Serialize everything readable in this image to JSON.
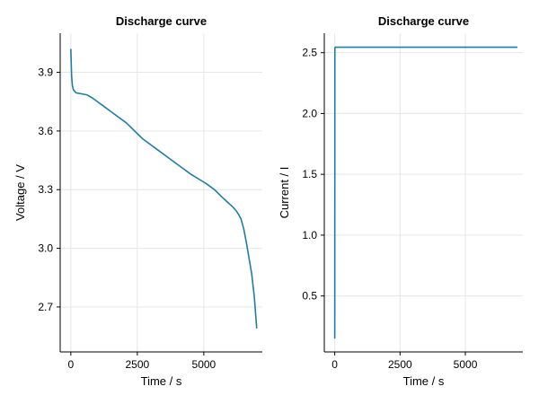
{
  "chart_data": [
    {
      "type": "line",
      "title": "Discharge curve",
      "xlabel": "Time / s",
      "ylabel": "Voltage / V",
      "xlim": [
        -400,
        7200
      ],
      "ylim": [
        2.47,
        4.1
      ],
      "xticks": [
        0,
        2500,
        5000
      ],
      "xtick_labels": [
        "0",
        "2500",
        "5000"
      ],
      "yticks": [
        2.7,
        3.0,
        3.3,
        3.6,
        3.9
      ],
      "ytick_labels": [
        "2.7",
        "3.0",
        "3.3",
        "3.6",
        "3.9"
      ],
      "grid": true,
      "series": [
        {
          "color": "#1f7ea0",
          "x": [
            0,
            10,
            30,
            60,
            100,
            200,
            400,
            600,
            800,
            1000,
            1200,
            1500,
            1800,
            2100,
            2400,
            2700,
            3000,
            3300,
            3600,
            3900,
            4200,
            4500,
            4800,
            5100,
            5400,
            5700,
            5900,
            6100,
            6200,
            6300,
            6400,
            6500,
            6600,
            6700,
            6800,
            6900,
            6990
          ],
          "y": [
            4.02,
            3.97,
            3.88,
            3.83,
            3.81,
            3.795,
            3.79,
            3.785,
            3.77,
            3.75,
            3.73,
            3.7,
            3.67,
            3.64,
            3.6,
            3.56,
            3.53,
            3.5,
            3.47,
            3.44,
            3.41,
            3.38,
            3.355,
            3.33,
            3.3,
            3.26,
            3.235,
            3.21,
            3.195,
            3.175,
            3.15,
            3.1,
            3.03,
            2.95,
            2.87,
            2.75,
            2.59
          ]
        }
      ]
    },
    {
      "type": "line",
      "title": "Discharge curve",
      "xlabel": "Time / s",
      "ylabel": "Current / I",
      "xlim": [
        -400,
        7200
      ],
      "ylim": [
        0.04,
        2.66
      ],
      "xticks": [
        0,
        2500,
        5000
      ],
      "xtick_labels": [
        "0",
        "2500",
        "5000"
      ],
      "yticks": [
        0.5,
        1.0,
        1.5,
        2.0,
        2.5
      ],
      "ytick_labels": [
        "0.5",
        "1.0",
        "1.5",
        "2.0",
        "2.5"
      ],
      "grid": true,
      "series": [
        {
          "color": "#1f7ea0",
          "x": [
            0,
            5,
            20,
            3000,
            6990
          ],
          "y": [
            0.15,
            2.54,
            2.545,
            2.545,
            2.545
          ]
        }
      ]
    }
  ]
}
